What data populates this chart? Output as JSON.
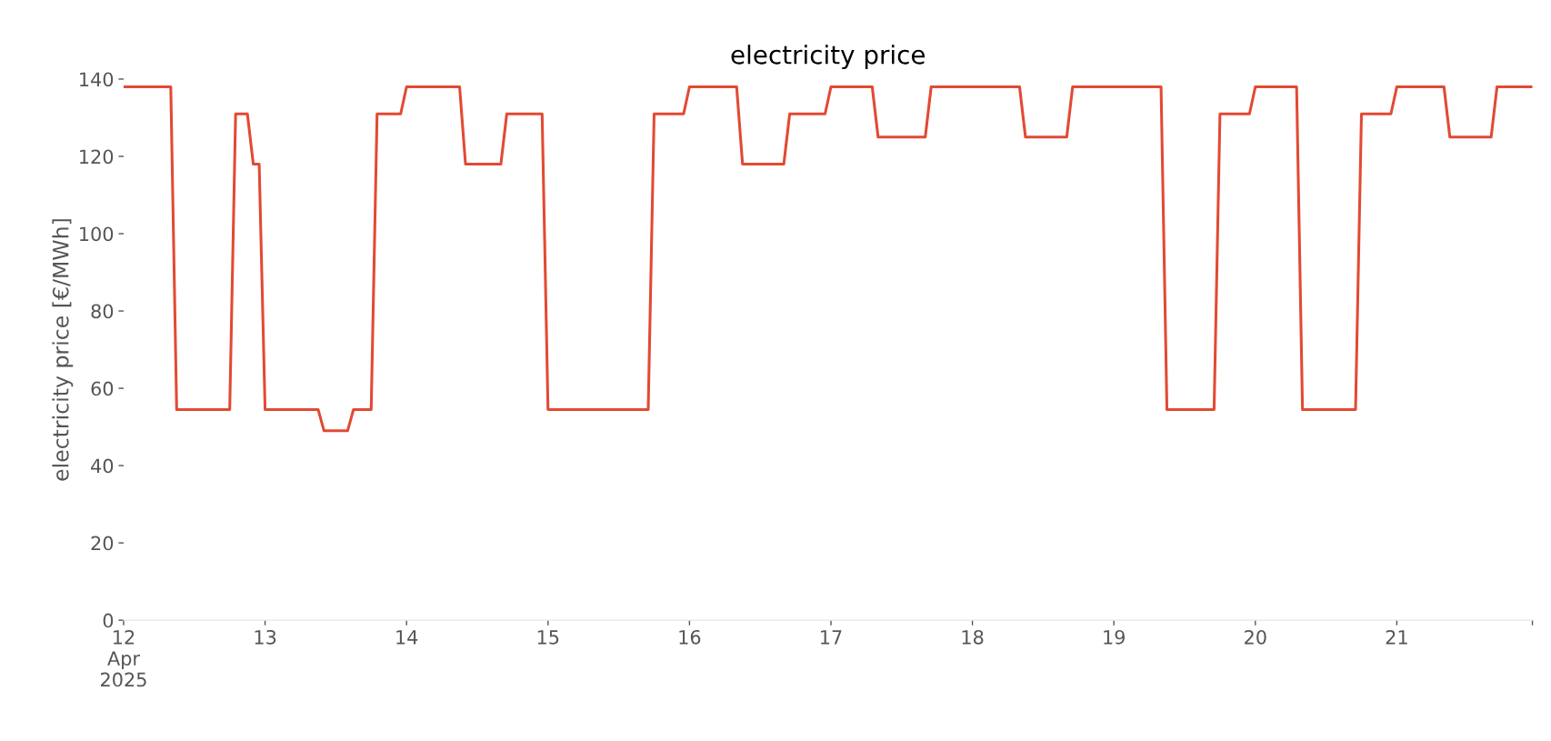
{
  "chart_data": {
    "type": "line",
    "title": "electricity price",
    "ylabel": "electricity price [€/MWh]",
    "x": [
      "2025-04-12T00:00",
      "2025-04-12T08:00",
      "2025-04-12T09:00",
      "2025-04-12T18:00",
      "2025-04-12T19:00",
      "2025-04-12T21:00",
      "2025-04-12T22:00",
      "2025-04-12T23:00",
      "2025-04-13T00:00",
      "2025-04-13T09:00",
      "2025-04-13T10:00",
      "2025-04-13T14:00",
      "2025-04-13T15:00",
      "2025-04-13T18:00",
      "2025-04-13T19:00",
      "2025-04-13T23:00",
      "2025-04-14T00:00",
      "2025-04-14T09:00",
      "2025-04-14T10:00",
      "2025-04-14T16:00",
      "2025-04-14T17:00",
      "2025-04-14T23:00",
      "2025-04-15T00:00",
      "2025-04-15T17:00",
      "2025-04-15T18:00",
      "2025-04-15T23:00",
      "2025-04-16T00:00",
      "2025-04-16T08:00",
      "2025-04-16T09:00",
      "2025-04-16T16:00",
      "2025-04-16T17:00",
      "2025-04-16T23:00",
      "2025-04-17T00:00",
      "2025-04-17T07:00",
      "2025-04-17T08:00",
      "2025-04-17T16:00",
      "2025-04-17T17:00",
      "2025-04-18T08:00",
      "2025-04-18T09:00",
      "2025-04-18T16:00",
      "2025-04-18T17:00",
      "2025-04-19T08:00",
      "2025-04-19T09:00",
      "2025-04-19T17:00",
      "2025-04-19T18:00",
      "2025-04-19T23:00",
      "2025-04-20T00:00",
      "2025-04-20T07:00",
      "2025-04-20T08:00",
      "2025-04-20T17:00",
      "2025-04-20T18:00",
      "2025-04-20T23:00",
      "2025-04-21T00:00",
      "2025-04-21T08:00",
      "2025-04-21T09:00",
      "2025-04-21T16:00",
      "2025-04-21T17:00",
      "2025-04-21T23:00"
    ],
    "series": [
      {
        "color": "#e24a33",
        "values": [
          138,
          138,
          54.5,
          54.5,
          131,
          131,
          118,
          118,
          54.5,
          54.5,
          49,
          49,
          54.5,
          54.5,
          131,
          131,
          138,
          138,
          118,
          118,
          131,
          131,
          54.5,
          54.5,
          131,
          131,
          138,
          138,
          118,
          118,
          131,
          131,
          138,
          138,
          125,
          125,
          138,
          138,
          125,
          125,
          138,
          138,
          54.5,
          54.5,
          131,
          131,
          138,
          138,
          54.5,
          54.5,
          131,
          131,
          138,
          138,
          125,
          125,
          138,
          138
        ]
      }
    ],
    "xticks": [
      {
        "value": "2025-04-12",
        "label": "12\nApr\n2025"
      },
      {
        "value": "2025-04-13",
        "label": "13"
      },
      {
        "value": "2025-04-14",
        "label": "14"
      },
      {
        "value": "2025-04-15",
        "label": "15"
      },
      {
        "value": "2025-04-16",
        "label": "16"
      },
      {
        "value": "2025-04-17",
        "label": "17"
      },
      {
        "value": "2025-04-18",
        "label": "18"
      },
      {
        "value": "2025-04-19",
        "label": "19"
      },
      {
        "value": "2025-04-20",
        "label": "20"
      },
      {
        "value": "2025-04-21",
        "label": "21"
      },
      {
        "value": "2025-04-21T23:00",
        "label": null
      }
    ],
    "xlim": [
      "2025-04-12T00:00",
      "2025-04-21T23:00"
    ],
    "ylim": [
      0,
      140
    ],
    "yticks": [
      0,
      20,
      40,
      60,
      80,
      100,
      120,
      140
    ],
    "grid": false,
    "marker": "none",
    "line_style": "solid"
  }
}
